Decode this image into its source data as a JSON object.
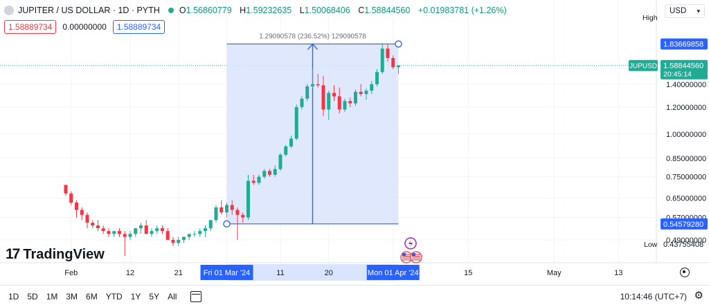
{
  "header": {
    "symbol": "JUPITER / US DOLLAR · 1D · PYTH",
    "open_label": "O",
    "open": "1.56860779",
    "high_label": "H",
    "high": "1.59232635",
    "low_label": "L",
    "low": "1.50068406",
    "close_label": "C",
    "close": "1.58844560",
    "change": "+0.01983781 (+1.26%)"
  },
  "price_row": {
    "sell": "1.58889734",
    "spread": "0.00000000",
    "buy": "1.58889734"
  },
  "currency": "USD",
  "brand": {
    "mark": "17",
    "name": "TradingView"
  },
  "measure": {
    "label": "1.29090578 (236.52%) 129090578"
  },
  "axis": {
    "high_tag": "High",
    "high_value": "1.83669858",
    "low_tag": "Low",
    "low_value": "0.43755408",
    "symbol_tag": "JUPUSD",
    "last_price": "1.58844560",
    "countdown": "20:45:14",
    "range_low_price": "0.54579280"
  },
  "bottom": {
    "ranges": [
      "1D",
      "5D",
      "1M",
      "3M",
      "6M",
      "YTD",
      "1Y",
      "5Y",
      "All"
    ],
    "clock": "10:14:46 (UTC+7)"
  },
  "colors": {
    "up": "#22ab94",
    "down": "#f23645",
    "accent": "#2962ff",
    "range_fill": "#dbe4fd"
  },
  "chart_data": {
    "type": "candlestick",
    "title": "JUPITER / US DOLLAR · 1D · PYTH",
    "scale": "log",
    "ylim": [
      0.42,
      2.05
    ],
    "y_ticks": [
      {
        "v": 1.4,
        "label": "1.40000000"
      },
      {
        "v": 1.2,
        "label": "1.20000000"
      },
      {
        "v": 1.0,
        "label": "1.00000000"
      },
      {
        "v": 0.85,
        "label": "0.85000000"
      },
      {
        "v": 0.75,
        "label": "0.75000000"
      },
      {
        "v": 0.65,
        "label": "0.65000000"
      },
      {
        "v": 0.57,
        "label": "0.57000000"
      },
      {
        "v": 0.49,
        "label": "0.49000000"
      }
    ],
    "x_ticks": [
      {
        "i": 1,
        "label": "Feb"
      },
      {
        "i": 12,
        "label": "12"
      },
      {
        "i": 21,
        "label": "21"
      },
      {
        "i": 30,
        "label": "Fri 01 Mar '24",
        "highlight": true
      },
      {
        "i": 40,
        "label": "11"
      },
      {
        "i": 49,
        "label": "20"
      },
      {
        "i": 61,
        "label": "Mon 01 Apr '24",
        "highlight": true
      },
      {
        "i": 75,
        "label": "15"
      },
      {
        "i": 91,
        "label": "May"
      },
      {
        "i": 103,
        "label": "13"
      }
    ],
    "candles": [
      [
        0.71,
        0.71,
        0.66,
        0.67
      ],
      [
        0.67,
        0.68,
        0.62,
        0.63
      ],
      [
        0.63,
        0.64,
        0.57,
        0.6
      ],
      [
        0.6,
        0.61,
        0.56,
        0.58
      ],
      [
        0.58,
        0.59,
        0.53,
        0.55
      ],
      [
        0.55,
        0.56,
        0.53,
        0.54
      ],
      [
        0.54,
        0.56,
        0.52,
        0.53
      ],
      [
        0.53,
        0.54,
        0.51,
        0.52
      ],
      [
        0.52,
        0.53,
        0.5,
        0.51
      ],
      [
        0.51,
        0.52,
        0.5,
        0.52
      ],
      [
        0.52,
        0.53,
        0.5,
        0.51
      ],
      [
        0.51,
        0.52,
        0.44,
        0.5
      ],
      [
        0.5,
        0.52,
        0.49,
        0.51
      ],
      [
        0.51,
        0.53,
        0.5,
        0.53
      ],
      [
        0.53,
        0.55,
        0.51,
        0.54
      ],
      [
        0.54,
        0.56,
        0.51,
        0.51
      ],
      [
        0.51,
        0.53,
        0.5,
        0.52
      ],
      [
        0.52,
        0.54,
        0.51,
        0.53
      ],
      [
        0.53,
        0.54,
        0.51,
        0.52
      ],
      [
        0.52,
        0.53,
        0.49,
        0.49
      ],
      [
        0.49,
        0.5,
        0.47,
        0.48
      ],
      [
        0.48,
        0.5,
        0.47,
        0.49
      ],
      [
        0.49,
        0.5,
        0.48,
        0.5
      ],
      [
        0.5,
        0.51,
        0.49,
        0.51
      ],
      [
        0.51,
        0.52,
        0.5,
        0.51
      ],
      [
        0.51,
        0.53,
        0.5,
        0.52
      ],
      [
        0.52,
        0.54,
        0.5,
        0.53
      ],
      [
        0.53,
        0.56,
        0.52,
        0.56
      ],
      [
        0.56,
        0.62,
        0.55,
        0.61
      ],
      [
        0.61,
        0.64,
        0.58,
        0.59
      ],
      [
        0.59,
        0.63,
        0.57,
        0.62
      ],
      [
        0.62,
        0.64,
        0.58,
        0.6
      ],
      [
        0.6,
        0.61,
        0.49,
        0.58
      ],
      [
        0.58,
        0.59,
        0.55,
        0.57
      ],
      [
        0.57,
        0.76,
        0.56,
        0.73
      ],
      [
        0.73,
        0.76,
        0.71,
        0.72
      ],
      [
        0.72,
        0.76,
        0.71,
        0.75
      ],
      [
        0.75,
        0.79,
        0.74,
        0.78
      ],
      [
        0.78,
        0.79,
        0.75,
        0.76
      ],
      [
        0.76,
        0.81,
        0.75,
        0.79
      ],
      [
        0.79,
        0.88,
        0.78,
        0.87
      ],
      [
        0.87,
        0.93,
        0.86,
        0.92
      ],
      [
        0.92,
        0.99,
        0.91,
        0.97
      ],
      [
        0.97,
        1.22,
        0.96,
        1.2
      ],
      [
        1.2,
        1.29,
        1.18,
        1.27
      ],
      [
        1.27,
        1.4,
        1.25,
        1.38
      ],
      [
        1.38,
        1.56,
        1.36,
        1.4
      ],
      [
        1.4,
        1.5,
        1.37,
        1.39
      ],
      [
        1.39,
        1.48,
        1.13,
        1.18
      ],
      [
        1.18,
        1.34,
        1.1,
        1.32
      ],
      [
        1.32,
        1.39,
        1.25,
        1.29
      ],
      [
        1.29,
        1.37,
        1.15,
        1.18
      ],
      [
        1.18,
        1.27,
        1.16,
        1.25
      ],
      [
        1.25,
        1.28,
        1.2,
        1.23
      ],
      [
        1.23,
        1.35,
        1.21,
        1.33
      ],
      [
        1.33,
        1.4,
        1.29,
        1.31
      ],
      [
        1.31,
        1.36,
        1.26,
        1.34
      ],
      [
        1.34,
        1.43,
        1.31,
        1.4
      ],
      [
        1.4,
        1.55,
        1.38,
        1.52
      ],
      [
        1.52,
        1.83,
        1.5,
        1.78
      ],
      [
        1.78,
        1.83,
        1.63,
        1.67
      ],
      [
        1.67,
        1.7,
        1.55,
        1.57
      ],
      [
        1.57,
        1.59,
        1.5,
        1.59
      ]
    ]
  }
}
